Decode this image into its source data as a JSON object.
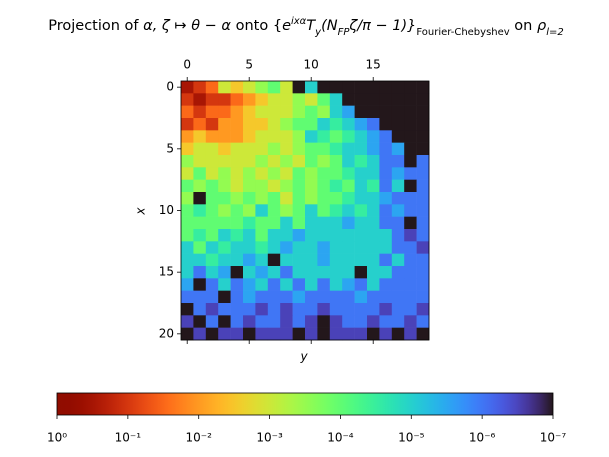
{
  "chart_data": {
    "type": "heatmap",
    "title": [
      "Projection of ",
      "α, ζ ↦ θ − α",
      " onto {",
      "e",
      "ixα",
      "T",
      "y",
      "(N",
      "FP",
      "ζ/π − 1)}",
      "Fourier-Chebyshev",
      " on ",
      "ρ",
      "l=2"
    ],
    "xlabel": "y",
    "ylabel": "x",
    "xlim": [
      -0.5,
      19.5
    ],
    "xticks": [
      0,
      5,
      10,
      15
    ],
    "ylim": [
      20.5,
      -0.5
    ],
    "yticks": [
      0,
      5,
      10,
      15,
      20
    ],
    "colormap": "turbo",
    "log_color": true,
    "clim": [
      1,
      1e-07
    ],
    "cticks": [
      {
        "value": 1,
        "label": "10⁰"
      },
      {
        "value": 0.1,
        "label": "10⁻¹"
      },
      {
        "value": 0.01,
        "label": "10⁻²"
      },
      {
        "value": 0.001,
        "label": "10⁻³"
      },
      {
        "value": 0.0001,
        "label": "10⁻⁴"
      },
      {
        "value": 1e-05,
        "label": "10⁻⁵"
      },
      {
        "value": 1e-06,
        "label": "10⁻⁶"
      },
      {
        "value": 1e-07,
        "label": "10⁻⁷"
      }
    ],
    "values": [
      [
        0.3,
        0.1,
        0.03,
        0.001,
        0.003,
        0.001,
        0.0003,
        0.0001,
        0.001,
        1e-07,
        1e-05,
        1e-07,
        1e-07,
        1e-07,
        1e-07,
        1e-07,
        1e-07,
        1e-07,
        1e-07,
        1e-07
      ],
      [
        0.1,
        0.3,
        0.1,
        0.1,
        0.03,
        0.01,
        0.003,
        0.001,
        0.001,
        0.0003,
        0.001,
        0.0001,
        1e-05,
        1e-07,
        1e-07,
        1e-07,
        1e-07,
        1e-07,
        1e-07,
        1e-07
      ],
      [
        0.03,
        0.1,
        0.03,
        0.03,
        0.01,
        0.003,
        0.001,
        0.001,
        0.001,
        0.0003,
        0.0001,
        0.0003,
        1e-05,
        3e-06,
        1e-07,
        1e-07,
        1e-07,
        1e-07,
        1e-07,
        1e-07
      ],
      [
        0.1,
        0.03,
        0.1,
        0.01,
        0.01,
        0.003,
        0.003,
        0.001,
        0.0003,
        0.0001,
        0.0001,
        1e-05,
        3e-05,
        1e-05,
        3e-06,
        1e-06,
        1e-07,
        1e-07,
        1e-07,
        1e-07
      ],
      [
        0.01,
        0.003,
        0.01,
        0.01,
        0.01,
        0.003,
        0.001,
        0.001,
        0.001,
        0.0003,
        1e-05,
        3e-05,
        0.0001,
        3e-05,
        1e-05,
        3e-06,
        1e-06,
        1e-07,
        1e-07,
        1e-07
      ],
      [
        0.003,
        0.001,
        0.001,
        0.003,
        0.001,
        0.001,
        0.001,
        0.0003,
        0.001,
        0.0003,
        0.0001,
        0.0001,
        3e-05,
        1e-05,
        1e-05,
        3e-06,
        1e-06,
        3e-06,
        1e-07,
        1e-07
      ],
      [
        0.0003,
        0.001,
        0.001,
        0.001,
        0.001,
        0.001,
        0.0003,
        0.001,
        0.0003,
        0.001,
        0.0001,
        0.0003,
        0.0001,
        1e-05,
        3e-05,
        1e-05,
        1e-06,
        1e-06,
        1e-07,
        1e-06
      ],
      [
        0.001,
        0.0001,
        0.001,
        0.0003,
        0.001,
        0.0003,
        0.001,
        0.0003,
        0.001,
        0.0001,
        0.0003,
        0.0001,
        0.0001,
        3e-05,
        1e-05,
        1e-05,
        1e-06,
        3e-06,
        1e-06,
        1e-06
      ],
      [
        0.0001,
        0.0003,
        0.0001,
        0.0003,
        0.001,
        0.0003,
        0.0003,
        0.001,
        0.0003,
        0.0001,
        0.0003,
        0.0001,
        3e-05,
        0.0001,
        1e-05,
        3e-05,
        1e-06,
        1e-05,
        1e-07,
        1e-06
      ],
      [
        0.0003,
        1e-07,
        0.0001,
        0.0001,
        0.0003,
        0.0001,
        0.0003,
        0.0001,
        0.001,
        0.0001,
        0.0003,
        0.0001,
        0.0001,
        3e-05,
        1e-05,
        1e-05,
        3e-06,
        1e-06,
        1e-06,
        1e-06
      ],
      [
        0.0001,
        3e-05,
        0.0001,
        0.0003,
        0.0001,
        0.0003,
        1e-05,
        0.0001,
        0.0003,
        0.0001,
        1e-05,
        0.0001,
        3e-05,
        1e-05,
        3e-05,
        1e-05,
        1e-06,
        3e-06,
        1e-06,
        1e-06
      ],
      [
        0.0001,
        0.0001,
        0.0001,
        0.0001,
        0.0001,
        3e-05,
        0.0001,
        0.0001,
        1e-05,
        0.0001,
        1e-05,
        1e-05,
        1e-05,
        3e-06,
        1e-05,
        1e-05,
        1e-06,
        1e-06,
        1e-07,
        1e-06
      ],
      [
        0.0001,
        3e-05,
        0.0001,
        1e-05,
        3e-05,
        1e-05,
        0.0001,
        1e-05,
        1e-05,
        3e-06,
        1e-05,
        1e-05,
        1e-05,
        1e-05,
        1e-05,
        1e-05,
        1e-05,
        1e-06,
        3e-07,
        1e-06
      ],
      [
        1e-05,
        0.0001,
        1e-05,
        3e-05,
        1e-05,
        1e-05,
        3e-05,
        1e-05,
        3e-06,
        1e-05,
        1e-05,
        3e-06,
        1e-05,
        1e-05,
        1e-05,
        1e-05,
        1e-05,
        1e-06,
        1e-06,
        3e-07
      ],
      [
        1e-05,
        1e-05,
        3e-05,
        1e-05,
        1e-05,
        3e-06,
        1e-05,
        1e-07,
        1e-05,
        1e-05,
        1e-05,
        3e-06,
        1e-05,
        1e-05,
        1e-05,
        1e-05,
        1e-06,
        1e-05,
        1e-06,
        1e-06
      ],
      [
        1e-05,
        1e-06,
        1e-05,
        3e-06,
        1e-07,
        1e-05,
        3e-06,
        1e-05,
        1e-06,
        1e-05,
        1e-05,
        1e-05,
        1e-05,
        1e-05,
        1e-07,
        1e-05,
        1e-05,
        1e-06,
        1e-06,
        1e-06
      ],
      [
        3e-06,
        1e-07,
        1e-06,
        1e-05,
        1e-06,
        3e-06,
        1e-05,
        1e-06,
        1e-05,
        1e-06,
        1e-05,
        1e-06,
        1e-05,
        3e-06,
        1e-06,
        1e-05,
        1e-06,
        1e-06,
        1e-06,
        1e-06
      ],
      [
        1e-06,
        1e-06,
        1e-06,
        1e-07,
        1e-06,
        3e-06,
        1e-06,
        1e-06,
        1e-06,
        3e-06,
        1e-06,
        1e-06,
        1e-06,
        1e-06,
        3e-06,
        1e-06,
        1e-06,
        1e-06,
        1e-06,
        1e-06
      ],
      [
        1e-07,
        1e-06,
        3e-07,
        1e-06,
        1e-06,
        1e-06,
        3e-07,
        1e-06,
        3e-07,
        1e-06,
        1e-06,
        3e-07,
        1e-06,
        1e-06,
        1e-06,
        1e-06,
        3e-07,
        1e-06,
        1e-06,
        3e-07
      ],
      [
        3e-07,
        1e-07,
        1e-06,
        1e-07,
        1e-06,
        3e-07,
        1e-06,
        1e-06,
        3e-07,
        1e-06,
        3e-07,
        1e-07,
        3e-07,
        1e-06,
        1e-06,
        3e-07,
        1e-06,
        1e-06,
        3e-07,
        1e-06
      ],
      [
        1e-07,
        3e-07,
        1e-07,
        3e-07,
        3e-07,
        1e-07,
        3e-07,
        3e-07,
        3e-07,
        1e-07,
        3e-07,
        1e-07,
        3e-07,
        3e-07,
        3e-07,
        1e-07,
        3e-07,
        1e-07,
        3e-07,
        1e-07
      ]
    ]
  }
}
